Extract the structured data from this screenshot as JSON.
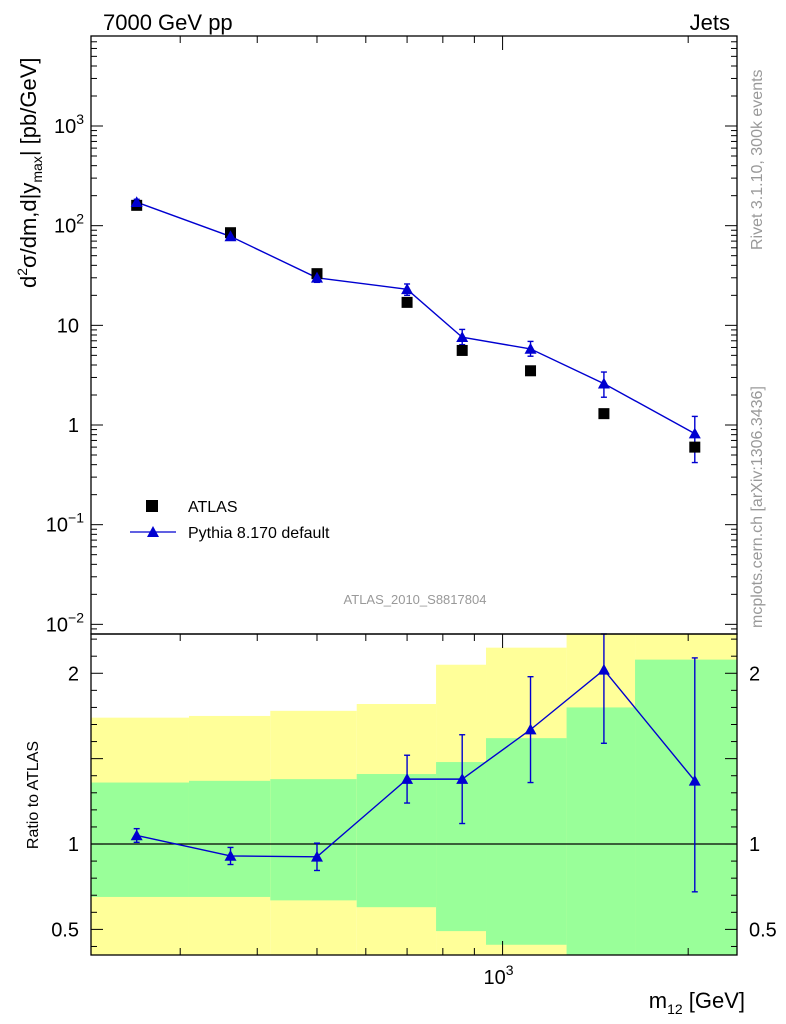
{
  "header": {
    "left": "7000 GeV pp",
    "right": "Jets"
  },
  "side_labels": {
    "rivet": "Rivet 3.1.10,  300k events",
    "mcplots": "mcplots.cern.ch [arXiv:1306.3436]"
  },
  "analysis_id": "ATLAS_2010_S8817804",
  "colors": {
    "mc": "#0000d0",
    "data": "#000000",
    "band_outer": "#ffff99",
    "band_inner": "#99ff99",
    "side_text": "#999999"
  },
  "chart_data": [
    {
      "type": "scatter",
      "panel": "main",
      "ylabel_parts": {
        "d": "d",
        "sup": "2",
        "mid": "σ/dm,d|y",
        "sub": "max",
        "end": "| [pb/GeV]"
      },
      "yscale": "log",
      "ylim": [
        0.008,
        8000
      ],
      "xlim_note": "shared log x axis",
      "y_ticks": [
        {
          "v": 0.01,
          "base": "10",
          "exp": "−2"
        },
        {
          "v": 0.1,
          "base": "10",
          "exp": "−1"
        },
        {
          "v": 1,
          "base": "1",
          "exp": ""
        },
        {
          "v": 10,
          "base": "10",
          "exp": ""
        },
        {
          "v": 100,
          "base": "10",
          "exp": "2"
        },
        {
          "v": 1000,
          "base": "10",
          "exp": "3"
        }
      ],
      "legend": [
        {
          "name": "ATLAS",
          "marker": "square"
        },
        {
          "name": "Pythia 8.170 default",
          "marker": "triangle-line"
        }
      ],
      "series": [
        {
          "name": "ATLAS",
          "x": [
            255,
            362,
            500,
            700,
            860,
            1110,
            1460,
            2050
          ],
          "y": [
            160,
            85,
            33,
            17,
            5.6,
            3.5,
            1.3,
            0.6
          ],
          "yerr_up": [
            8,
            4,
            1.5,
            0.8,
            0.3,
            0.2,
            0.1,
            0.08
          ],
          "yerr_down": [
            8,
            4,
            1.5,
            0.8,
            0.3,
            0.2,
            0.1,
            0.08
          ]
        },
        {
          "name": "Pythia 8.170 default",
          "x": [
            255,
            362,
            500,
            700,
            860,
            1110,
            1460,
            2050
          ],
          "y": [
            172,
            78,
            30,
            23,
            7.6,
            5.8,
            2.6,
            0.82
          ],
          "yerr_up": [
            12,
            6,
            3,
            3,
            1.5,
            1.1,
            0.8,
            0.4
          ],
          "yerr_down": [
            12,
            6,
            3,
            3,
            1.2,
            0.9,
            0.7,
            0.4
          ]
        }
      ]
    },
    {
      "type": "line",
      "panel": "ratio",
      "ylabel": "Ratio to ATLAS",
      "xlabel_parts": {
        "m": "m",
        "sub": "12",
        "end": " [GeV]"
      },
      "xscale": "log",
      "xlim": [
        215,
        2400
      ],
      "x_ticks": [
        {
          "v": 1000,
          "base": "10",
          "exp": "3"
        }
      ],
      "ylim": [
        0.35,
        2.23
      ],
      "y_ticks": [
        {
          "v": 0.5,
          "label": "0.5"
        },
        {
          "v": 1,
          "label": "1"
        },
        {
          "v": 2,
          "label": "2"
        }
      ],
      "bins": [
        {
          "lo": 215,
          "hi": 310,
          "y": 1.05,
          "err_up": 0.04,
          "err_down": 0.04,
          "band_inner": [
            0.69,
            1.36
          ],
          "band_outer": [
            0.35,
            1.74
          ]
        },
        {
          "lo": 310,
          "hi": 420,
          "y": 0.93,
          "err_up": 0.05,
          "err_down": 0.05,
          "band_inner": [
            0.69,
            1.37
          ],
          "band_outer": [
            0.35,
            1.75
          ]
        },
        {
          "lo": 420,
          "hi": 580,
          "y": 0.925,
          "err_up": 0.08,
          "err_down": 0.08,
          "band_inner": [
            0.67,
            1.38
          ],
          "band_outer": [
            0.35,
            1.78
          ]
        },
        {
          "lo": 580,
          "hi": 780,
          "y": 1.38,
          "err_up": 0.14,
          "err_down": 0.14,
          "band_inner": [
            0.63,
            1.41
          ],
          "band_outer": [
            0.35,
            1.82
          ]
        },
        {
          "lo": 780,
          "hi": 940,
          "y": 1.38,
          "err_up": 0.26,
          "err_down": 0.26,
          "band_inner": [
            0.49,
            1.48
          ],
          "band_outer": [
            0.35,
            2.05
          ]
        },
        {
          "lo": 940,
          "hi": 1270,
          "y": 1.67,
          "err_up": 0.31,
          "err_down": 0.31,
          "band_inner": [
            0.41,
            1.62
          ],
          "band_outer": [
            0.35,
            2.15
          ]
        },
        {
          "lo": 1270,
          "hi": 1640,
          "y": 2.02,
          "err_up": 0.4,
          "err_down": 0.43,
          "band_inner": [
            0.35,
            1.8
          ],
          "band_outer": [
            0.35,
            2.23
          ]
        },
        {
          "lo": 1640,
          "hi": 2400,
          "y": 1.37,
          "err_up": 0.72,
          "err_down": 0.65,
          "band_inner": [
            0.35,
            2.08
          ],
          "band_outer": [
            0.35,
            2.23
          ]
        }
      ],
      "series": [
        {
          "name": "Pythia 8.170 default",
          "x": [
            255,
            362,
            500,
            700,
            860,
            1110,
            1460,
            2050
          ],
          "y": [
            1.05,
            0.93,
            0.925,
            1.38,
            1.38,
            1.67,
            2.02,
            1.37
          ]
        }
      ]
    }
  ]
}
